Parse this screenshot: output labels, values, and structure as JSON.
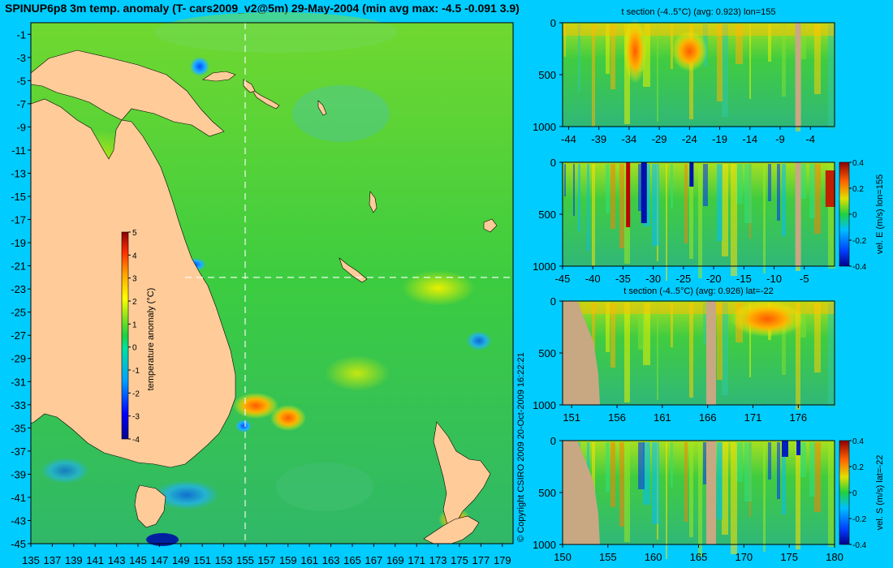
{
  "title": "SPINUP6p8 3m temp. anomaly (T- cars2009_v2@5m) 29-May-2004 (min avg max: -4.5 -0.091 3.9)",
  "copyright": "© Copyright CSIRO 2009   20-Oct-2009 16:22:21",
  "colors": {
    "background": "#00ccff",
    "land": "#ffcc99",
    "section_land": "#c8a882"
  },
  "chart_data": [
    {
      "type": "heatmap",
      "name": "map",
      "xlim": [
        135,
        180
      ],
      "ylim": [
        -45,
        0
      ],
      "x_ticks": [
        "135",
        "137",
        "139",
        "141",
        "143",
        "145",
        "147",
        "149",
        "151",
        "153",
        "155",
        "157",
        "159",
        "161",
        "163",
        "165",
        "167",
        "169",
        "171",
        "173",
        "175",
        "177",
        "179"
      ],
      "y_ticks": [
        "-1",
        "-3",
        "-5",
        "-7",
        "-9",
        "-11",
        "-13",
        "-15",
        "-17",
        "-19",
        "-21",
        "-23",
        "-25",
        "-27",
        "-29",
        "-31",
        "-33",
        "-35",
        "-37",
        "-39",
        "-41",
        "-43",
        "-45"
      ],
      "crosshair": {
        "lon": 155,
        "lat": -22
      },
      "colorbar": {
        "label": "temperature anomaly (°C)",
        "ticks": [
          "5",
          "4",
          "3",
          "2",
          "1",
          "0",
          "-1",
          "-2",
          "-3",
          "-4"
        ],
        "range": [
          -4,
          5
        ]
      }
    },
    {
      "type": "heatmap",
      "name": "t-section-lon155",
      "title": "t section (-4..5°C) (avg: 0.923) lon=155",
      "xlim": [
        -45,
        0
      ],
      "ylim": [
        1000,
        0
      ],
      "x_ticks": [
        "-44",
        "-39",
        "-34",
        "-29",
        "-24",
        "-19",
        "-14",
        "-9",
        "-4"
      ],
      "x_tick_values": [
        -44,
        -39,
        -34,
        -29,
        -24,
        -19,
        -14,
        -9,
        -4
      ],
      "y_ticks": [
        "0",
        "500",
        "1000"
      ],
      "hot_spots": [
        -33,
        -24
      ]
    },
    {
      "type": "heatmap",
      "name": "vel-e-lon155",
      "xlim": [
        -45,
        0
      ],
      "ylim": [
        1000,
        0
      ],
      "x_ticks": [
        "-45",
        "-40",
        "-35",
        "-30",
        "-25",
        "-20",
        "-15",
        "-10",
        "-5"
      ],
      "x_tick_values": [
        -45,
        -40,
        -35,
        -30,
        -25,
        -20,
        -15,
        -10,
        -5
      ],
      "y_ticks": [
        "0",
        "500",
        "1000"
      ],
      "colorbar": {
        "label": "vel. E (m/s) lon=155",
        "ticks": [
          "0.4",
          "0.2",
          "0",
          "-0.2",
          "-0.4"
        ],
        "range": [
          -0.4,
          0.4
        ]
      }
    },
    {
      "type": "heatmap",
      "name": "t-section-lat-22",
      "title": "t section (-4..5°C) (avg: 0.926) lat=-22",
      "xlim": [
        150,
        180
      ],
      "ylim": [
        1000,
        0
      ],
      "x_ticks": [
        "151",
        "156",
        "161",
        "166",
        "171",
        "176"
      ],
      "x_tick_values": [
        151,
        156,
        161,
        166,
        171,
        176
      ],
      "y_ticks": [
        "0",
        "500",
        "1000"
      ]
    },
    {
      "type": "heatmap",
      "name": "vel-s-lat-22",
      "xlim": [
        150,
        180
      ],
      "ylim": [
        1000,
        0
      ],
      "x_ticks": [
        "150",
        "155",
        "160",
        "165",
        "170",
        "175",
        "180"
      ],
      "x_tick_values": [
        150,
        155,
        160,
        165,
        170,
        175,
        180
      ],
      "y_ticks": [
        "0",
        "500",
        "1000"
      ],
      "colorbar": {
        "label": "vel. S (m/s) lat=-22",
        "ticks": [
          "0.4",
          "0.2",
          "0",
          "-0.2",
          "-0.4"
        ],
        "range": [
          -0.4,
          0.4
        ]
      }
    }
  ]
}
